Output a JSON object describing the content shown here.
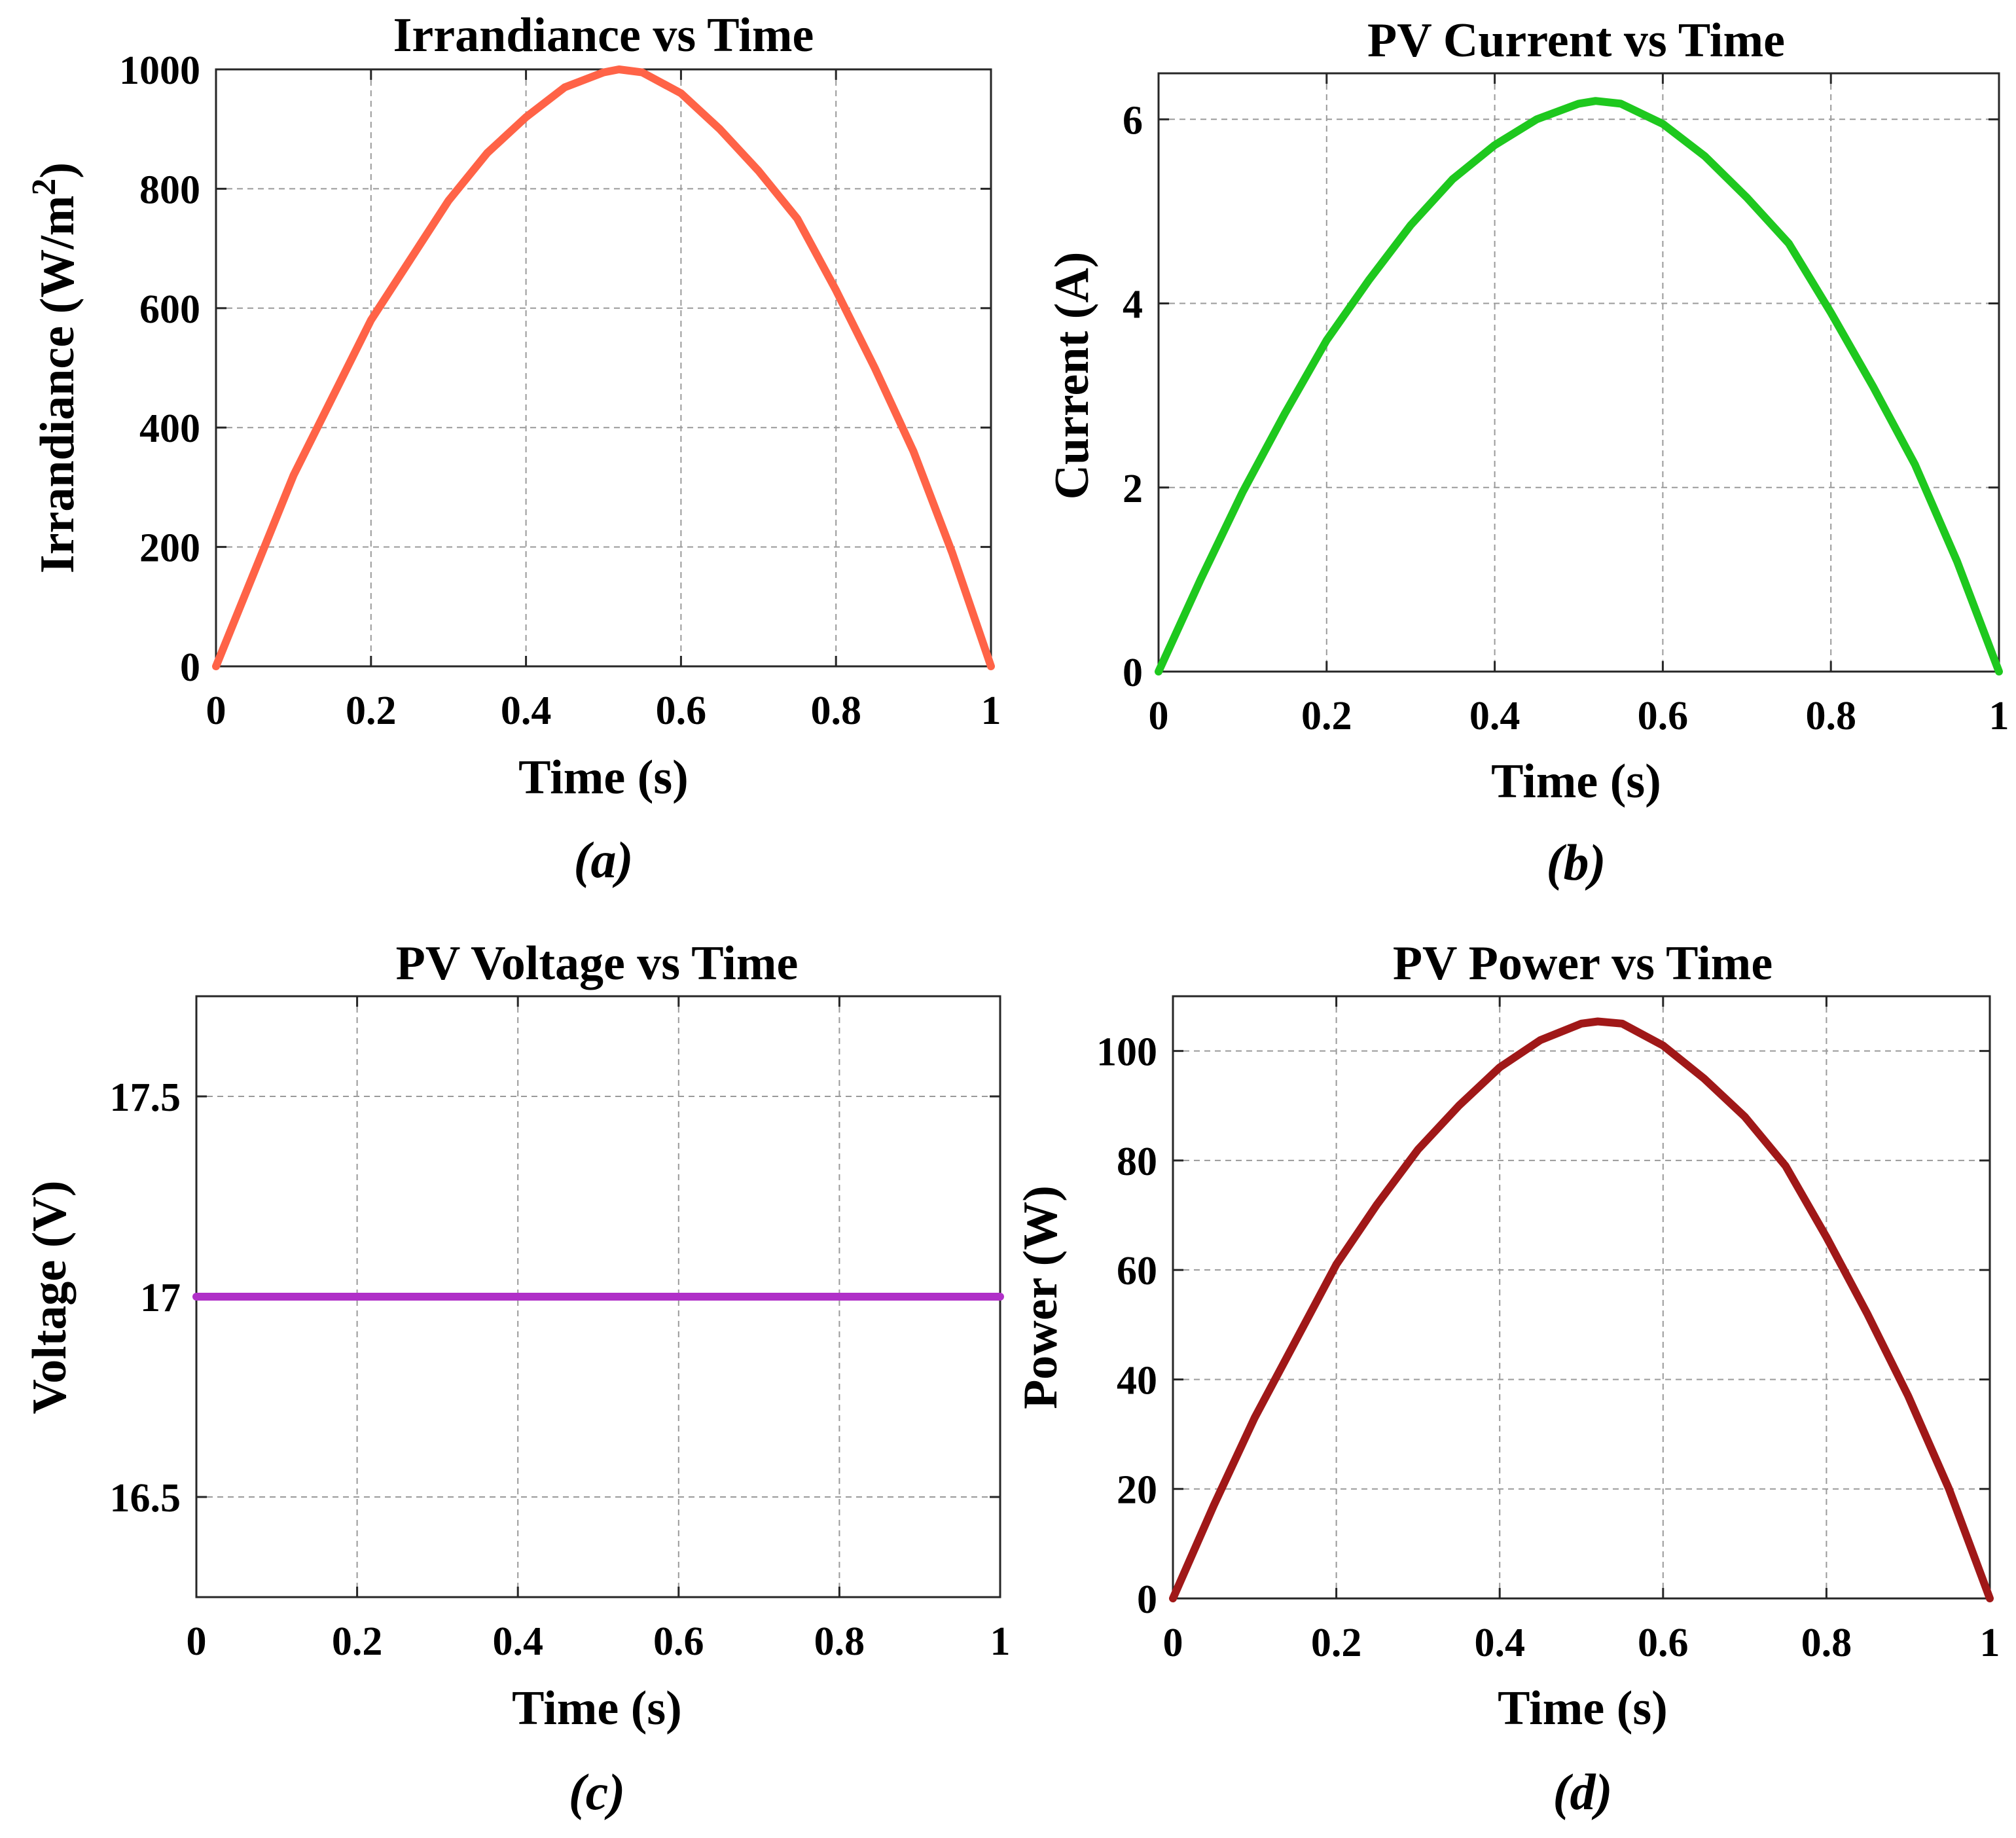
{
  "chart_data": [
    {
      "id": "a",
      "type": "line",
      "title": "Irrandiance vs Time",
      "xlabel": "Time (s)",
      "ylabel": "Irrandiance (W/m",
      "ylabel_sup": "2",
      "ylabel_suffix": ")",
      "caption": "(a)",
      "xlim": [
        0,
        1
      ],
      "ylim": [
        0,
        1000
      ],
      "xticks": [
        0,
        0.2,
        0.4,
        0.6,
        0.8,
        1
      ],
      "xtick_labels": [
        "0",
        "0.2",
        "0.4",
        "0.6",
        "0.8",
        "1"
      ],
      "yticks": [
        0,
        200,
        400,
        600,
        800,
        1000
      ],
      "ytick_labels": [
        "0",
        "200",
        "400",
        "600",
        "800",
        "1000"
      ],
      "grid": true,
      "color": "#ff6347",
      "series": [
        {
          "name": "Irradiance",
          "x": [
            0,
            0.05,
            0.1,
            0.15,
            0.2,
            0.25,
            0.3,
            0.35,
            0.4,
            0.45,
            0.5,
            0.52,
            0.55,
            0.6,
            0.65,
            0.7,
            0.75,
            0.8,
            0.85,
            0.9,
            0.95,
            1
          ],
          "y": [
            0,
            160,
            320,
            450,
            580,
            680,
            780,
            860,
            920,
            970,
            995,
            1000,
            995,
            960,
            900,
            830,
            750,
            630,
            500,
            360,
            190,
            0
          ]
        }
      ]
    },
    {
      "id": "b",
      "type": "line",
      "title": "PV Current vs Time",
      "xlabel": "Time (s)",
      "ylabel": "Current (A)",
      "caption": "(b)",
      "xlim": [
        0,
        1
      ],
      "ylim": [
        0,
        6.5
      ],
      "xticks": [
        0,
        0.2,
        0.4,
        0.6,
        0.8,
        1
      ],
      "xtick_labels": [
        "0",
        "0.2",
        "0.4",
        "0.6",
        "0.8",
        "1"
      ],
      "yticks": [
        0,
        2,
        4,
        6
      ],
      "ytick_labels": [
        "0",
        "2",
        "4",
        "6"
      ],
      "grid": true,
      "color": "#1ec81e",
      "series": [
        {
          "name": "PV Current",
          "x": [
            0,
            0.05,
            0.1,
            0.15,
            0.2,
            0.25,
            0.3,
            0.35,
            0.4,
            0.45,
            0.5,
            0.52,
            0.55,
            0.6,
            0.65,
            0.7,
            0.75,
            0.8,
            0.85,
            0.9,
            0.95,
            1
          ],
          "y": [
            0,
            1.0,
            1.95,
            2.8,
            3.6,
            4.25,
            4.85,
            5.35,
            5.72,
            6.0,
            6.17,
            6.2,
            6.17,
            5.95,
            5.6,
            5.15,
            4.65,
            3.9,
            3.1,
            2.25,
            1.2,
            0
          ]
        }
      ]
    },
    {
      "id": "c",
      "type": "line",
      "title": "PV Voltage vs Time",
      "xlabel": "Time (s)",
      "ylabel": "Voltage (V)",
      "caption": "(c)",
      "xlim": [
        0,
        1
      ],
      "ylim": [
        16.25,
        17.75
      ],
      "xticks": [
        0,
        0.2,
        0.4,
        0.6,
        0.8,
        1
      ],
      "xtick_labels": [
        "0",
        "0.2",
        "0.4",
        "0.6",
        "0.8",
        "1"
      ],
      "yticks": [
        16.5,
        17,
        17.5
      ],
      "ytick_labels": [
        "16.5",
        "17",
        "17.5"
      ],
      "grid": true,
      "color": "#b030c8",
      "series": [
        {
          "name": "PV Voltage",
          "x": [
            0,
            1
          ],
          "y": [
            17,
            17
          ]
        }
      ]
    },
    {
      "id": "d",
      "type": "line",
      "title": "PV Power vs Time",
      "xlabel": "Time (s)",
      "ylabel": "Power (W)",
      "caption": "(d)",
      "xlim": [
        0,
        1
      ],
      "ylim": [
        0,
        110
      ],
      "xticks": [
        0,
        0.2,
        0.4,
        0.6,
        0.8,
        1
      ],
      "xtick_labels": [
        "0",
        "0.2",
        "0.4",
        "0.6",
        "0.8",
        "1"
      ],
      "yticks": [
        0,
        20,
        40,
        60,
        80,
        100
      ],
      "ytick_labels": [
        "0",
        "20",
        "40",
        "60",
        "80",
        "100"
      ],
      "grid": true,
      "color": "#a01818",
      "series": [
        {
          "name": "PV Power",
          "x": [
            0,
            0.05,
            0.1,
            0.15,
            0.2,
            0.25,
            0.3,
            0.35,
            0.4,
            0.45,
            0.5,
            0.52,
            0.55,
            0.6,
            0.65,
            0.7,
            0.75,
            0.8,
            0.85,
            0.9,
            0.95,
            1
          ],
          "y": [
            0,
            17,
            33,
            47,
            61,
            72,
            82,
            90,
            97,
            102,
            105,
            105.4,
            105,
            101,
            95,
            88,
            79,
            66,
            52,
            37,
            20,
            0
          ]
        }
      ]
    }
  ]
}
